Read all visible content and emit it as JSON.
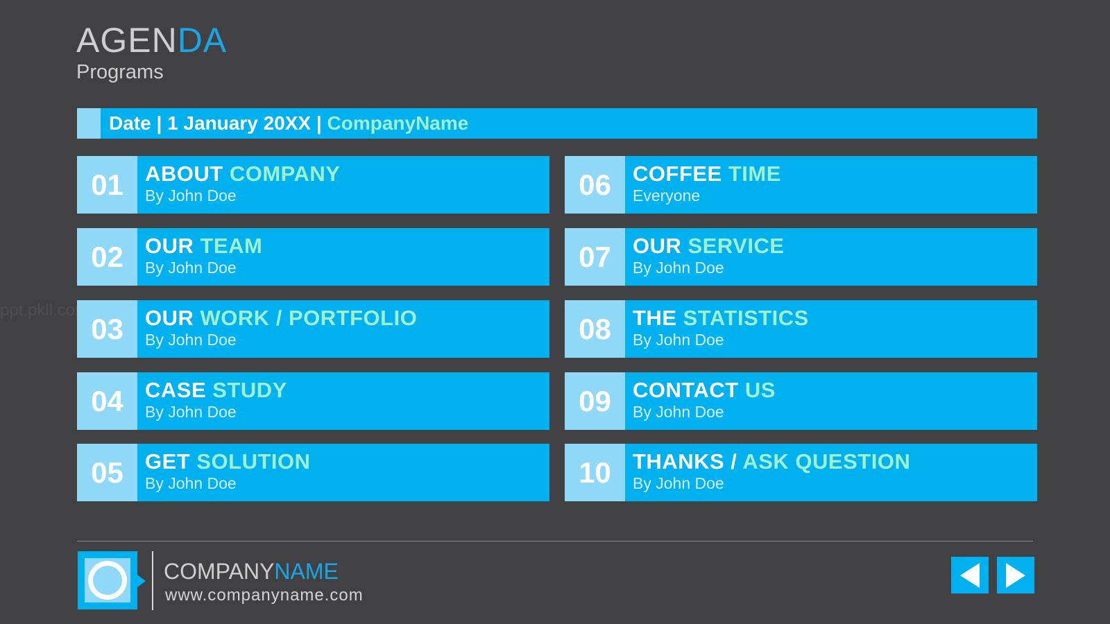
{
  "header": {
    "title_main": "AGEN",
    "title_accent": "DA",
    "subtitle": "Programs"
  },
  "datebar": {
    "text": "Date | 1 January 20XX | ",
    "company": "CompanyName"
  },
  "agenda": [
    {
      "num": "01",
      "head": "ABOUT ",
      "highlight": "COMPANY",
      "by": "By John Doe"
    },
    {
      "num": "02",
      "head": "OUR ",
      "highlight": "TEAM",
      "by": "By John Doe"
    },
    {
      "num": "03",
      "head": "OUR ",
      "highlight": "WORK / PORTFOLIO",
      "by": "By John Doe"
    },
    {
      "num": "04",
      "head": "CASE ",
      "highlight": "STUDY",
      "by": "By John Doe"
    },
    {
      "num": "05",
      "head": "GET ",
      "highlight": "SOLUTION",
      "by": "By John Doe"
    },
    {
      "num": "06",
      "head": "COFFEE ",
      "highlight": "TIME",
      "by": "Everyone"
    },
    {
      "num": "07",
      "head": "OUR ",
      "highlight": "SERVICE",
      "by": "By John Doe"
    },
    {
      "num": "08",
      "head": "THE ",
      "highlight": "STATISTICS",
      "by": "By John Doe"
    },
    {
      "num": "09",
      "head": "CONTACT ",
      "highlight": "US",
      "by": "By John Doe"
    },
    {
      "num": "10",
      "head": "THANKS / ",
      "highlight": "ASK QUESTION",
      "by": "By John Doe"
    }
  ],
  "footer": {
    "company_main": "COMPANY",
    "company_accent": "NAME",
    "url": "www.companyname.com",
    "logo_icon": "ring-logo-icon",
    "prev_icon": "triangle-left-icon",
    "next_icon": "triangle-right-icon"
  },
  "watermark": "ppt.pkll.com",
  "colors": {
    "background": "#414143",
    "accent_blue": "#00b0ef",
    "light_blue": "#8fd8f7",
    "highlight_green": "#9ff0cf",
    "title_accent": "#1aa6e6"
  }
}
